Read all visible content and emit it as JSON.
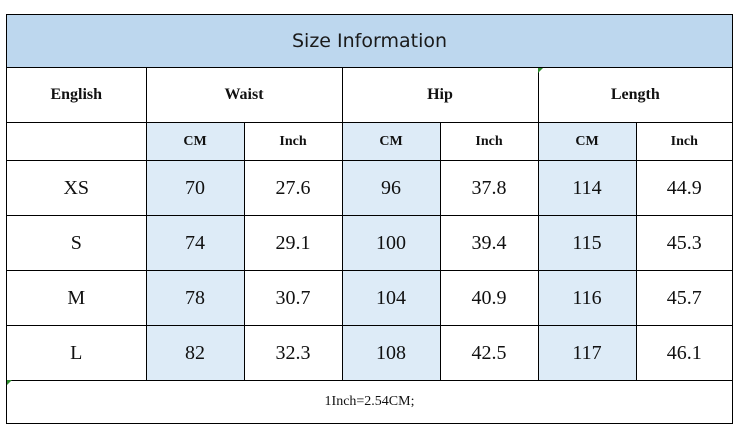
{
  "title": "Size Information",
  "header": {
    "first": "English",
    "groups": [
      "Waist",
      "Hip",
      "Length"
    ]
  },
  "units": [
    "CM",
    "Inch",
    "CM",
    "Inch",
    "CM",
    "Inch"
  ],
  "rows": [
    {
      "size": "XS",
      "values": [
        "70",
        "27.6",
        "96",
        "37.8",
        "114",
        "44.9"
      ]
    },
    {
      "size": "S",
      "values": [
        "74",
        "29.1",
        "100",
        "39.4",
        "115",
        "45.3"
      ]
    },
    {
      "size": "M",
      "values": [
        "78",
        "30.7",
        "104",
        "40.9",
        "116",
        "45.7"
      ]
    },
    {
      "size": "L",
      "values": [
        "82",
        "32.3",
        "108",
        "42.5",
        "117",
        "46.1"
      ]
    }
  ],
  "note": "1Inch=2.54CM;",
  "colors": {
    "title_bg": "#bdd7ee",
    "cm_column_bg": "#ddebf7",
    "border": "#000000",
    "corner_mark": "#2e8b2e"
  }
}
